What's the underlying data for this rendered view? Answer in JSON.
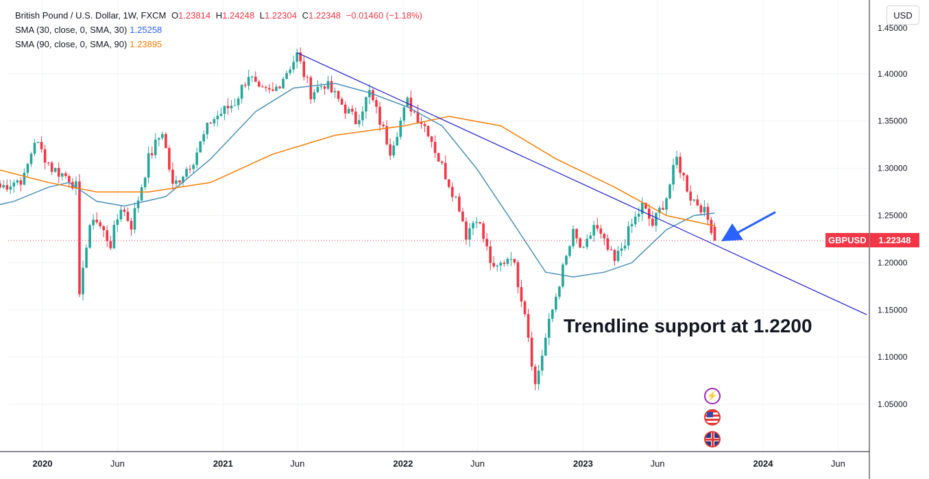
{
  "legend": {
    "symbol": "British Pound / U.S. Dollar, 1W, FXCM",
    "ohlc": {
      "o_label": "O",
      "o": "1.23814",
      "h_label": "H",
      "h": "1.24248",
      "l_label": "L",
      "l": "1.22304",
      "c_label": "C",
      "c": "1.22348",
      "change": "−0.01460 (−1.18%)"
    },
    "sma30": {
      "label": "SMA (30, close, 0, SMA, 30)",
      "value": "1.25258"
    },
    "sma90": {
      "label": "SMA (90, close, 0, SMA, 90)",
      "value": "1.23895"
    }
  },
  "currency": "USD",
  "price_tag": {
    "symbol": "GBPUSD",
    "value": "1.22348"
  },
  "annotation": "Trendline support at 1.2200",
  "colors": {
    "up": "#26a69a",
    "down": "#f23645",
    "sma30": "#4a90b8",
    "sma90": "#f57c00",
    "trendline": "#1e1ecc",
    "arrow": "#2962ff"
  },
  "icons": [
    "lightning-icon",
    "us-flag-icon",
    "uk-flag-icon"
  ],
  "chart_data": {
    "type": "candlestick",
    "y_axis": {
      "min": 1.0,
      "max": 1.45,
      "ticks": [
        "1.05000",
        "1.10000",
        "1.15000",
        "1.20000",
        "1.25000",
        "1.30000",
        "1.35000",
        "1.40000"
      ],
      "tick_values": [
        1.05,
        1.1,
        1.15,
        1.2,
        1.25,
        1.3,
        1.35,
        1.4
      ],
      "top_partial_tick": "1.45000",
      "position": "right"
    },
    "x_axis": {
      "labels": [
        {
          "text": "2020",
          "date": "2020-01-01",
          "bold": true
        },
        {
          "text": "Jun",
          "date": "2020-06-01",
          "bold": false
        },
        {
          "text": "2021",
          "date": "2021-01-01",
          "bold": true
        },
        {
          "text": "Jun",
          "date": "2021-06-01",
          "bold": false
        },
        {
          "text": "2022",
          "date": "2022-01-01",
          "bold": true
        },
        {
          "text": "Jun",
          "date": "2022-06-01",
          "bold": false
        },
        {
          "text": "2023",
          "date": "2023-01-01",
          "bold": true
        },
        {
          "text": "Jun",
          "date": "2023-06-01",
          "bold": false
        },
        {
          "text": "2024",
          "date": "2024-01-01",
          "bold": true
        },
        {
          "text": "Jun",
          "date": "2024-06-01",
          "bold": false
        }
      ]
    },
    "last_price": 1.22348,
    "grid": true,
    "price_anchors": [
      [
        "2019-10-07",
        1.28
      ],
      [
        "2019-11-25",
        1.29
      ],
      [
        "2019-12-16",
        1.33
      ],
      [
        "2020-01-20",
        1.3
      ],
      [
        "2020-02-24",
        1.29
      ],
      [
        "2020-03-09",
        1.28
      ],
      [
        "2020-03-16",
        1.16
      ],
      [
        "2020-03-23",
        1.2
      ],
      [
        "2020-04-13",
        1.25
      ],
      [
        "2020-05-18",
        1.22
      ],
      [
        "2020-06-08",
        1.26
      ],
      [
        "2020-06-29",
        1.24
      ],
      [
        "2020-08-03",
        1.31
      ],
      [
        "2020-08-31",
        1.34
      ],
      [
        "2020-09-21",
        1.28
      ],
      [
        "2020-11-02",
        1.31
      ],
      [
        "2020-12-07",
        1.35
      ],
      [
        "2021-01-25",
        1.37
      ],
      [
        "2021-02-22",
        1.4
      ],
      [
        "2021-03-15",
        1.38
      ],
      [
        "2021-04-12",
        1.38
      ],
      [
        "2021-05-31",
        1.42
      ],
      [
        "2021-06-28",
        1.38
      ],
      [
        "2021-07-26",
        1.39
      ],
      [
        "2021-09-27",
        1.35
      ],
      [
        "2021-10-25",
        1.38
      ],
      [
        "2021-12-06",
        1.32
      ],
      [
        "2022-01-10",
        1.37
      ],
      [
        "2022-02-21",
        1.34
      ],
      [
        "2022-03-14",
        1.31
      ],
      [
        "2022-04-25",
        1.26
      ],
      [
        "2022-05-09",
        1.23
      ],
      [
        "2022-05-30",
        1.25
      ],
      [
        "2022-07-04",
        1.19
      ],
      [
        "2022-08-08",
        1.21
      ],
      [
        "2022-09-05",
        1.15
      ],
      [
        "2022-09-26",
        1.07
      ],
      [
        "2022-10-17",
        1.12
      ],
      [
        "2022-11-14",
        1.18
      ],
      [
        "2022-12-12",
        1.23
      ],
      [
        "2023-01-02",
        1.21
      ],
      [
        "2023-01-23",
        1.24
      ],
      [
        "2023-03-06",
        1.2
      ],
      [
        "2023-04-10",
        1.24
      ],
      [
        "2023-05-01",
        1.26
      ],
      [
        "2023-05-22",
        1.24
      ],
      [
        "2023-06-19",
        1.27
      ],
      [
        "2023-07-10",
        1.31
      ],
      [
        "2023-08-07",
        1.27
      ],
      [
        "2023-08-28",
        1.26
      ],
      [
        "2023-09-18",
        1.238
      ],
      [
        "2023-09-25",
        1.2235
      ]
    ],
    "sma30_points": [
      [
        "2019-09-23",
        1.26
      ],
      [
        "2019-11-04",
        1.265
      ],
      [
        "2020-01-13",
        1.28
      ],
      [
        "2020-02-24",
        1.285
      ],
      [
        "2020-04-20",
        1.265
      ],
      [
        "2020-06-15",
        1.26
      ],
      [
        "2020-09-07",
        1.27
      ],
      [
        "2020-12-07",
        1.31
      ],
      [
        "2021-03-08",
        1.36
      ],
      [
        "2021-05-24",
        1.385
      ],
      [
        "2021-08-16",
        1.39
      ],
      [
        "2021-10-25",
        1.38
      ],
      [
        "2022-01-10",
        1.365
      ],
      [
        "2022-03-21",
        1.345
      ],
      [
        "2022-05-30",
        1.3
      ],
      [
        "2022-08-15",
        1.24
      ],
      [
        "2022-10-17",
        1.19
      ],
      [
        "2022-12-12",
        1.185
      ],
      [
        "2023-02-13",
        1.19
      ],
      [
        "2023-04-10",
        1.2
      ],
      [
        "2023-06-19",
        1.235
      ],
      [
        "2023-08-14",
        1.25
      ],
      [
        "2023-09-25",
        1.2526
      ]
    ],
    "sma90_points": [
      [
        "2019-09-23",
        1.3
      ],
      [
        "2020-01-13",
        1.285
      ],
      [
        "2020-04-20",
        1.275
      ],
      [
        "2020-08-03",
        1.275
      ],
      [
        "2020-12-07",
        1.285
      ],
      [
        "2021-04-12",
        1.315
      ],
      [
        "2021-08-16",
        1.335
      ],
      [
        "2022-01-03",
        1.345
      ],
      [
        "2022-04-04",
        1.355
      ],
      [
        "2022-07-18",
        1.345
      ],
      [
        "2022-11-07",
        1.31
      ],
      [
        "2023-03-06",
        1.28
      ],
      [
        "2023-06-19",
        1.25
      ],
      [
        "2023-09-25",
        1.239
      ]
    ],
    "trendline": {
      "start": [
        "2021-05-31",
        1.4225
      ],
      "end": [
        "2024-07-29",
        1.145
      ]
    }
  }
}
